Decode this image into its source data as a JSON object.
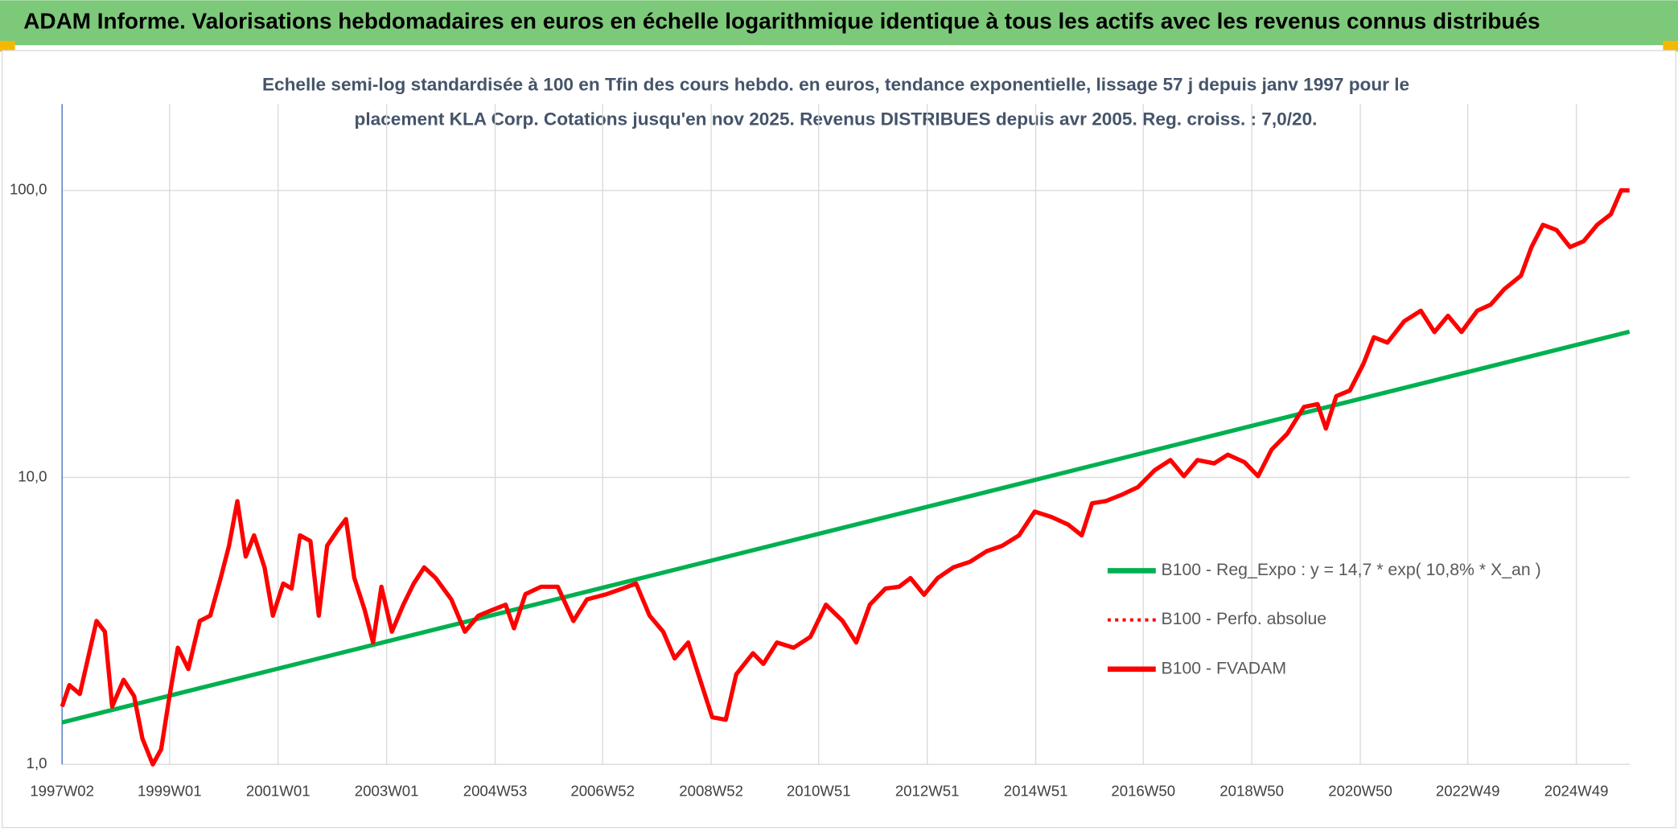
{
  "header": {
    "title": "ADAM Informe. Valorisations hebdomadaires en euros en échelle logarithmique identique à tous les actifs avec les revenus connus distribués"
  },
  "chart_data": {
    "type": "line",
    "title": [
      "Echelle semi-log standardisée à 100 en Tfin des cours hebdo. en euros, tendance exponentielle, lissage 57 j depuis janv 1997 pour le",
      "placement KLA Corp. Cotations jusqu'en nov 2025. Revenus DISTRIBUES depuis avr 2005. Reg. croiss. : 7,0/20."
    ],
    "categories": [
      "1997W02",
      "1999W01",
      "2001W01",
      "2003W01",
      "2004W53",
      "2006W52",
      "2008W52",
      "2010W51",
      "2012W51",
      "2014W51",
      "2016W50",
      "2018W50",
      "2020W50",
      "2022W49",
      "2024W49"
    ],
    "log_scale": true,
    "grid": true,
    "legend": "right",
    "ylim": [
      1,
      200
    ],
    "yticks": [
      {
        "value": 1,
        "label": "1,0"
      },
      {
        "value": 10,
        "label": "10,0"
      },
      {
        "value": 100,
        "label": "100,0"
      }
    ],
    "series": [
      {
        "name": "B100 - Reg_Expo : y = 14,7 * exp( 10,8% *  X_an )",
        "color": "#00b050",
        "style": "solid",
        "x": [
          "1997W02",
          "2025W48"
        ],
        "values": [
          1.4,
          32.2
        ]
      },
      {
        "name": "B100 - Perfo. absolue",
        "color": "#ff0000",
        "style": "dotted",
        "x": [],
        "values": []
      },
      {
        "name": "B100 - FVADAM",
        "color": "#ff0000",
        "style": "solid",
        "x": [
          "1997W02",
          "1997W09",
          "1997W19",
          "1997W35",
          "1997W43",
          "1997W50",
          "1998W09",
          "1998W19",
          "1998W27",
          "1998W37",
          "1998W45",
          "1999W01",
          "1999W09",
          "1999W19",
          "1999W30",
          "1999W40",
          "1999W50",
          "2000W06",
          "2000W14",
          "2000W22",
          "2000W30",
          "2000W40",
          "2000W48",
          "2001W06",
          "2001W14",
          "2001W22",
          "2001W32",
          "2001W40",
          "2001W48",
          "2002W06",
          "2002W14",
          "2002W22",
          "2002W32",
          "2002W40",
          "2002W48",
          "2003W06",
          "2003W17",
          "2003W27",
          "2003W37",
          "2003W48",
          "2004W11",
          "2004W24",
          "2004W37",
          "2004W50",
          "2005W11",
          "2005W19",
          "2005W30",
          "2005W45",
          "2006W09",
          "2006W24",
          "2006W37",
          "2007W04",
          "2007W19",
          "2007W32",
          "2007W45",
          "2008W06",
          "2008W17",
          "2008W30",
          "2008W43",
          "2009W01",
          "2009W14",
          "2009W24",
          "2009W40",
          "2009W50",
          "2010W11",
          "2010W27",
          "2010W43",
          "2011W06",
          "2011W22",
          "2011W35",
          "2011W48",
          "2012W11",
          "2012W24",
          "2012W35",
          "2012W48",
          "2013W09",
          "2013W24",
          "2013W40",
          "2014W04",
          "2014W19",
          "2014W35",
          "2014W50",
          "2015W14",
          "2015W30",
          "2015W43",
          "2016W01",
          "2016W14",
          "2016W30",
          "2016W45",
          "2017W09",
          "2017W24",
          "2017W37",
          "2017W50",
          "2018W14",
          "2018W27",
          "2018W43",
          "2019W04",
          "2019W17",
          "2019W32",
          "2019W48",
          "2020W09",
          "2020W17",
          "2020W27",
          "2020W40",
          "2021W01",
          "2021W11",
          "2021W24",
          "2021W40",
          "2022W04",
          "2022W17",
          "2022W30",
          "2022W43",
          "2023W06",
          "2023W19",
          "2023W32",
          "2023W48",
          "2024W06",
          "2024W17",
          "2024W30",
          "2024W43",
          "2025W04",
          "2025W17",
          "2025W30",
          "2025W40",
          "2025W48"
        ],
        "values": [
          1.59,
          1.89,
          1.76,
          3.16,
          2.9,
          1.59,
          1.97,
          1.73,
          1.23,
          1.0,
          1.13,
          1.73,
          2.55,
          2.15,
          3.16,
          3.3,
          4.46,
          5.78,
          8.27,
          5.3,
          6.28,
          4.86,
          3.3,
          4.27,
          4.1,
          6.28,
          6.0,
          3.3,
          5.78,
          6.55,
          7.16,
          4.46,
          3.45,
          2.66,
          4.16,
          2.9,
          3.6,
          4.27,
          4.86,
          4.46,
          3.76,
          2.9,
          3.3,
          3.45,
          3.6,
          2.98,
          3.92,
          4.16,
          4.16,
          3.16,
          3.76,
          3.92,
          4.1,
          4.27,
          3.3,
          2.9,
          2.34,
          2.66,
          1.89,
          1.46,
          1.43,
          2.06,
          2.44,
          2.24,
          2.66,
          2.55,
          2.78,
          3.6,
          3.16,
          2.66,
          3.6,
          4.1,
          4.16,
          4.46,
          3.9,
          4.46,
          4.86,
          5.08,
          5.53,
          5.78,
          6.28,
          7.6,
          7.28,
          6.85,
          6.28,
          8.13,
          8.27,
          8.72,
          9.25,
          10.6,
          11.5,
          10.1,
          11.5,
          11.2,
          12.0,
          11.3,
          10.1,
          12.5,
          14.2,
          17.6,
          18.0,
          14.8,
          19.2,
          20.1,
          24.9,
          30.8,
          29.5,
          35.0,
          38.1,
          32.1,
          36.6,
          32.1,
          38.1,
          40.0,
          45.3,
          50.5,
          63.5,
          75.9,
          72.8,
          63.5,
          66.5,
          75.9,
          82.6,
          100.1,
          100
        ]
      }
    ]
  }
}
